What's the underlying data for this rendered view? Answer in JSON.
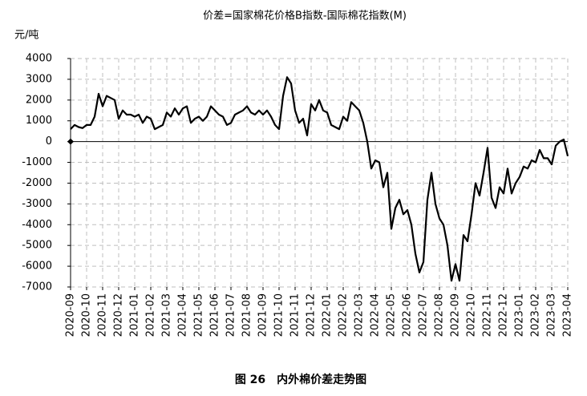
{
  "chart_data": {
    "type": "line",
    "title": "价差=国家棉花价格B指数-国际棉花指数(M)",
    "ylabel": "元/吨",
    "caption": "图 26　内外棉价差走势图",
    "x": [
      0,
      0.25,
      0.5,
      0.75,
      1,
      1.25,
      1.5,
      1.75,
      2,
      2.25,
      2.5,
      2.75,
      3,
      3.25,
      3.5,
      3.75,
      4,
      4.25,
      4.5,
      4.75,
      5,
      5.25,
      5.5,
      5.75,
      6,
      6.25,
      6.5,
      6.75,
      7,
      7.25,
      7.5,
      7.75,
      8,
      8.25,
      8.5,
      8.75,
      9,
      9.25,
      9.5,
      9.75,
      10,
      10.25,
      10.5,
      10.75,
      11,
      11.25,
      11.5,
      11.75,
      12,
      12.25,
      12.5,
      12.75,
      13,
      13.25,
      13.5,
      13.75,
      14,
      14.25,
      14.5,
      14.75,
      15,
      15.25,
      15.5,
      15.75,
      16,
      16.25,
      16.5,
      16.75,
      17,
      17.25,
      17.5,
      17.75,
      18,
      18.25,
      18.5,
      18.75,
      19,
      19.25,
      19.5,
      19.75,
      20,
      20.25,
      20.5,
      20.75,
      21,
      21.25,
      21.5,
      21.75,
      22,
      22.25,
      22.5,
      22.75,
      23,
      23.25,
      23.5,
      23.75,
      24,
      24.25,
      24.5,
      24.75,
      25,
      25.25,
      25.5,
      25.75,
      26,
      26.25,
      26.5,
      26.75,
      27,
      27.25,
      27.5,
      27.75,
      28,
      28.25,
      28.5,
      28.75,
      29,
      29.25,
      29.5,
      29.75,
      30,
      30.25,
      30.5,
      30.75,
      31
    ],
    "series": [
      {
        "name": "价差",
        "color": "#000000",
        "values": [
          600,
          800,
          700,
          650,
          800,
          800,
          1200,
          2300,
          1700,
          2200,
          2100,
          2000,
          1100,
          1500,
          1300,
          1300,
          1200,
          1300,
          900,
          1200,
          1100,
          600,
          700,
          800,
          1400,
          1200,
          1600,
          1300,
          1600,
          1700,
          900,
          1100,
          1200,
          1000,
          1200,
          1700,
          1500,
          1300,
          1200,
          800,
          900,
          1300,
          1400,
          1500,
          1700,
          1400,
          1300,
          1500,
          1300,
          1500,
          1200,
          800,
          600,
          2200,
          3100,
          2800,
          1500,
          900,
          1100,
          300,
          1800,
          1500,
          2000,
          1500,
          1400,
          800,
          700,
          600,
          1200,
          1000,
          1900,
          1700,
          1500,
          900,
          0,
          -1300,
          -900,
          -1000,
          -2200,
          -1500,
          -4200,
          -3200,
          -2800,
          -3500,
          -3300,
          -4000,
          -5400,
          -6300,
          -5800,
          -2800,
          -1500,
          -3000,
          -3700,
          -4000,
          -5000,
          -6700,
          -5900,
          -6700,
          -4500,
          -4800,
          -3500,
          -2000,
          -2600,
          -1500,
          -300,
          -2700,
          -3200,
          -2200,
          -2500,
          -1300,
          -2500,
          -2000,
          -1700,
          -1200,
          -1300,
          -900,
          -1000,
          -400,
          -800,
          -800,
          -1100,
          -200,
          0,
          100,
          -700
        ]
      }
    ],
    "xlim": [
      0,
      31
    ],
    "xticks": [
      {
        "value": 0,
        "label": "2020-09"
      },
      {
        "value": 1,
        "label": "2020-10"
      },
      {
        "value": 2,
        "label": "2020-11"
      },
      {
        "value": 3,
        "label": "2020-12"
      },
      {
        "value": 4,
        "label": "2021-01"
      },
      {
        "value": 5,
        "label": "2021-02"
      },
      {
        "value": 6,
        "label": "2021-03"
      },
      {
        "value": 7,
        "label": "2021-04"
      },
      {
        "value": 8,
        "label": "2021-05"
      },
      {
        "value": 9,
        "label": "2021-06"
      },
      {
        "value": 10,
        "label": "2021-07"
      },
      {
        "value": 11,
        "label": "2021-08"
      },
      {
        "value": 12,
        "label": "2021-09"
      },
      {
        "value": 13,
        "label": "2021-10"
      },
      {
        "value": 14,
        "label": "2021-11"
      },
      {
        "value": 15,
        "label": "2021-12"
      },
      {
        "value": 16,
        "label": "2022-01"
      },
      {
        "value": 17,
        "label": "2022-02"
      },
      {
        "value": 18,
        "label": "2022-03"
      },
      {
        "value": 19,
        "label": "2022-04"
      },
      {
        "value": 20,
        "label": "2022-05"
      },
      {
        "value": 21,
        "label": "2022-06"
      },
      {
        "value": 22,
        "label": "2022-07"
      },
      {
        "value": 23,
        "label": "2022-08"
      },
      {
        "value": 24,
        "label": "2022-09"
      },
      {
        "value": 25,
        "label": "2022-10"
      },
      {
        "value": 26,
        "label": "2022-11"
      },
      {
        "value": 27,
        "label": "2022-12"
      },
      {
        "value": 28,
        "label": "2023-01"
      },
      {
        "value": 29,
        "label": "2023-02"
      },
      {
        "value": 30,
        "label": "2023-03"
      },
      {
        "value": 31,
        "label": "2023-04"
      }
    ],
    "ylim": [
      -7000,
      4000
    ],
    "yticks": [
      -7000,
      -6000,
      -5000,
      -4000,
      -3000,
      -2000,
      -1000,
      0,
      1000,
      2000,
      3000,
      4000
    ],
    "grid": true
  }
}
